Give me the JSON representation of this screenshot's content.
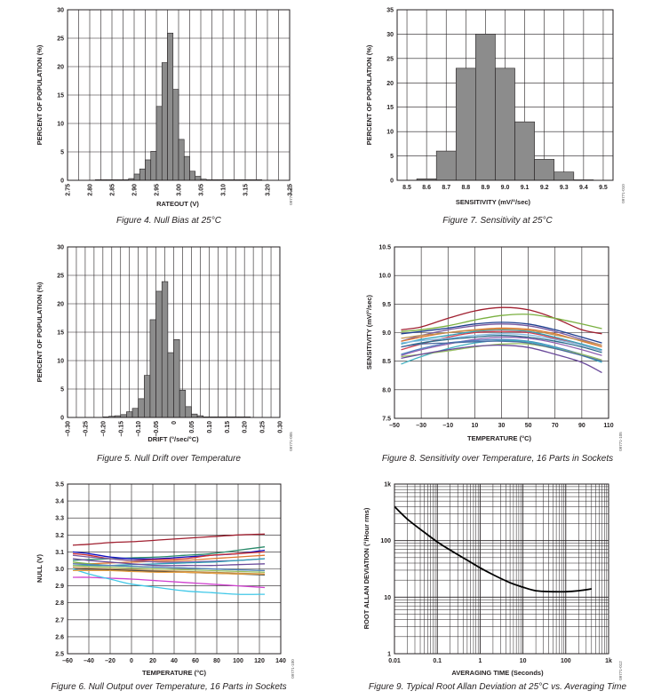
{
  "chart_data": [
    {
      "id": "fig4",
      "type": "bar",
      "caption": "Figure 4. Null Bias at 25°C",
      "xlabel": "RATEOUT (V)",
      "ylabel": "PERCENT OF POPULATION (%)",
      "figure_id": "09771-004",
      "xlim": [
        2.75,
        3.25
      ],
      "ylim": [
        0,
        30
      ],
      "xticks": [
        2.75,
        2.8,
        2.85,
        2.9,
        2.95,
        3.0,
        3.05,
        3.1,
        3.15,
        3.2,
        3.25
      ],
      "xtick_labels": [
        "2.75",
        "2.80",
        "2.85",
        "2.90",
        "2.95",
        "3.00",
        "3.05",
        "3.10",
        "3.15",
        "3.20",
        "3.25"
      ],
      "yticks": [
        0,
        5,
        10,
        15,
        20,
        25,
        30
      ],
      "ytick_labels": [
        "0",
        "5",
        "10",
        "15",
        "20",
        "25",
        "30"
      ],
      "grid": true,
      "bin_width": 0.0125,
      "bin_starts": [
        2.8125,
        2.825,
        2.8375,
        2.85,
        2.8625,
        2.875,
        2.8875,
        2.9,
        2.9125,
        2.925,
        2.9375,
        2.95,
        2.9625,
        2.975,
        2.9875,
        3.0,
        3.0125,
        3.025,
        3.0375,
        3.05,
        3.0625,
        3.075,
        3.0875,
        3.1,
        3.1125,
        3.125,
        3.1375,
        3.15,
        3.1625,
        3.175
      ],
      "values": [
        0.1,
        0.1,
        0.1,
        0.1,
        0.1,
        0.1,
        0.3,
        1.1,
        2.0,
        3.6,
        5.1,
        13.0,
        20.7,
        25.9,
        16.0,
        7.2,
        4.2,
        1.6,
        0.7,
        0.2,
        0.1,
        0.1,
        0.1,
        0.1,
        0.1,
        0.1,
        0.1,
        0.1,
        0.1,
        0.1
      ]
    },
    {
      "id": "fig7",
      "type": "bar",
      "caption": "Figure 7. Sensitivity at 25°C",
      "xlabel": "SENSITIVITY (mV/°/sec)",
      "ylabel": "PERCENT OF POPULATION (%)",
      "figure_id": "09771-010",
      "xlim": [
        8.45,
        9.55
      ],
      "ylim": [
        0,
        35
      ],
      "xticks": [
        8.5,
        8.6,
        8.7,
        8.8,
        8.9,
        9.0,
        9.1,
        9.2,
        9.3,
        9.4,
        9.5
      ],
      "xtick_labels": [
        "8.5",
        "8.6",
        "8.7",
        "8.8",
        "8.9",
        "9.0",
        "9.1",
        "9.2",
        "9.3",
        "9.4",
        "9.5"
      ],
      "yticks": [
        0,
        5,
        10,
        15,
        20,
        25,
        30,
        35
      ],
      "ytick_labels": [
        "0",
        "5",
        "10",
        "15",
        "20",
        "25",
        "30",
        "35"
      ],
      "grid": true,
      "bin_width": 0.1,
      "bin_starts": [
        8.55,
        8.65,
        8.75,
        8.85,
        8.95,
        9.05,
        9.15,
        9.25,
        9.35
      ],
      "values": [
        0.3,
        6.0,
        23.0,
        30.0,
        23.0,
        12.0,
        4.3,
        1.7,
        0.1
      ]
    },
    {
      "id": "fig5",
      "type": "bar",
      "caption": "Figure 5. Null Drift over Temperature",
      "xlabel": "DRIFT (°/sec/°C)",
      "ylabel": "PERCENT OF POPULATION (%)",
      "figure_id": "09771-005",
      "xlim": [
        -0.3,
        0.3
      ],
      "ylim": [
        0,
        30
      ],
      "xticks": [
        -0.3,
        -0.25,
        -0.2,
        -0.15,
        -0.1,
        -0.05,
        0,
        0.05,
        0.1,
        0.15,
        0.2,
        0.25,
        0.3
      ],
      "xtick_labels": [
        "–0.30",
        "–0.25",
        "–0.20",
        "–0.15",
        "–0.10",
        "–0.05",
        "0",
        "0.05",
        "0.10",
        "0.15",
        "0.20",
        "0.25",
        "0.30"
      ],
      "yticks": [
        0,
        5,
        10,
        15,
        20,
        25,
        30
      ],
      "ytick_labels": [
        "0",
        "5",
        "10",
        "15",
        "20",
        "25",
        "30"
      ],
      "grid": true,
      "bin_width": 0.0167,
      "bin_starts": [
        -0.2,
        -0.1833,
        -0.1667,
        -0.15,
        -0.1333,
        -0.1167,
        -0.1,
        -0.0833,
        -0.0667,
        -0.05,
        -0.0333,
        -0.0167,
        0,
        0.0167,
        0.0333,
        0.05,
        0.0667,
        0.0833,
        0.1,
        0.1167,
        0.1333,
        0.15,
        0.1667,
        0.1833,
        0.2
      ],
      "values": [
        0.1,
        0.2,
        0.3,
        0.5,
        1.0,
        1.6,
        3.3,
        7.4,
        17.2,
        22.2,
        23.9,
        11.4,
        13.7,
        4.8,
        1.9,
        0.6,
        0.3,
        0.1,
        0.1,
        0.1,
        0.1,
        0.1,
        0.1,
        0.1,
        0.1
      ]
    },
    {
      "id": "fig8",
      "type": "line",
      "caption": "Figure 8. Sensitivity over Temperature, 16 Parts in Sockets",
      "xlabel": "TEMPERATURE (°C)",
      "ylabel": "SENSITIVITY (mV/°/sec)",
      "figure_id": "09771-105",
      "xlim": [
        -50,
        110
      ],
      "ylim": [
        7.5,
        10.5
      ],
      "xticks": [
        -50,
        -30,
        -10,
        10,
        30,
        50,
        70,
        90,
        110
      ],
      "xtick_labels": [
        "–50",
        "–30",
        "–10",
        "10",
        "30",
        "50",
        "70",
        "90",
        "110"
      ],
      "yticks": [
        7.5,
        8.0,
        8.5,
        9.0,
        9.5,
        10.0,
        10.5
      ],
      "ytick_labels": [
        "7.5",
        "8.0",
        "8.5",
        "9.0",
        "9.5",
        "10.0",
        "10.5"
      ],
      "grid": true,
      "x": [
        -45,
        -30,
        -10,
        10,
        30,
        50,
        70,
        90,
        105
      ],
      "series": [
        {
          "color": "#a02030",
          "values": [
            9.05,
            9.1,
            9.25,
            9.38,
            9.44,
            9.4,
            9.25,
            9.05,
            8.98
          ]
        },
        {
          "color": "#7ab040",
          "values": [
            9.02,
            9.05,
            9.12,
            9.22,
            9.3,
            9.32,
            9.25,
            9.15,
            9.07
          ]
        },
        {
          "color": "#1f3f8f",
          "values": [
            8.98,
            9.02,
            9.08,
            9.15,
            9.18,
            9.15,
            9.05,
            8.92,
            8.82
          ]
        },
        {
          "color": "#7a5aa0",
          "values": [
            8.85,
            8.95,
            9.05,
            9.12,
            9.15,
            9.12,
            9.02,
            8.88,
            8.78
          ]
        },
        {
          "color": "#e07830",
          "values": [
            8.85,
            8.92,
            9.0,
            9.05,
            9.08,
            9.06,
            8.98,
            8.85,
            8.75
          ]
        },
        {
          "color": "#30a0b8",
          "values": [
            8.8,
            8.88,
            8.95,
            9.02,
            9.05,
            9.02,
            8.92,
            8.8,
            8.7
          ]
        },
        {
          "color": "#d04050",
          "values": [
            8.7,
            8.8,
            8.92,
            9.0,
            9.02,
            9.0,
            8.9,
            8.78,
            8.68
          ]
        },
        {
          "color": "#2a6a8a",
          "values": [
            8.75,
            8.82,
            8.88,
            8.92,
            8.95,
            8.92,
            8.85,
            8.75,
            8.65
          ]
        },
        {
          "color": "#9060b0",
          "values": [
            8.6,
            8.7,
            8.8,
            8.88,
            8.92,
            8.9,
            8.82,
            8.7,
            8.6
          ]
        },
        {
          "color": "#5080c0",
          "values": [
            8.62,
            8.72,
            8.82,
            8.86,
            8.88,
            8.85,
            8.75,
            8.62,
            8.52
          ]
        },
        {
          "color": "#40b0c0",
          "values": [
            8.45,
            8.58,
            8.72,
            8.82,
            8.86,
            8.84,
            8.74,
            8.6,
            8.48
          ]
        },
        {
          "color": "#98c060",
          "values": [
            8.58,
            8.62,
            8.68,
            8.75,
            8.8,
            8.8,
            8.72,
            8.62,
            8.52
          ]
        },
        {
          "color": "#6a4a9a",
          "values": [
            8.55,
            8.62,
            8.7,
            8.76,
            8.78,
            8.74,
            8.62,
            8.48,
            8.3
          ]
        },
        {
          "color": "#4a6aa0",
          "values": [
            8.75,
            8.8,
            8.82,
            8.84,
            8.85,
            8.82,
            8.72,
            8.6,
            8.5
          ]
        },
        {
          "color": "#80b8e0",
          "values": [
            8.82,
            8.86,
            8.9,
            8.95,
            8.98,
            8.96,
            8.88,
            8.78,
            8.68
          ]
        },
        {
          "color": "#c09050",
          "values": [
            8.9,
            8.95,
            9.0,
            9.04,
            9.06,
            9.04,
            8.96,
            8.86,
            8.78
          ]
        }
      ]
    },
    {
      "id": "fig6",
      "type": "line",
      "caption": "Figure 6. Null Output over Temperature, 16 Parts in Sockets",
      "xlabel": "TEMPERATURE (°C)",
      "ylabel": "NULL (V)",
      "figure_id": "09771-100",
      "xlim": [
        -60,
        140
      ],
      "ylim": [
        2.5,
        3.5
      ],
      "xticks": [
        -60,
        -40,
        -20,
        0,
        20,
        40,
        60,
        80,
        100,
        120,
        140
      ],
      "xtick_labels": [
        "–60",
        "–40",
        "–20",
        "0",
        "20",
        "40",
        "60",
        "80",
        "100",
        "120",
        "140"
      ],
      "yticks": [
        2.5,
        2.6,
        2.7,
        2.8,
        2.9,
        3.0,
        3.1,
        3.2,
        3.3,
        3.4,
        3.5
      ],
      "ytick_labels": [
        "2.5",
        "2.6",
        "2.7",
        "2.8",
        "2.9",
        "3.0",
        "3.1",
        "3.2",
        "3.3",
        "3.4",
        "3.5"
      ],
      "grid": true,
      "x": [
        -55,
        -40,
        -20,
        0,
        25,
        50,
        75,
        100,
        125
      ],
      "series": [
        {
          "color": "#a02030",
          "values": [
            3.14,
            3.145,
            3.155,
            3.16,
            3.17,
            3.18,
            3.19,
            3.2,
            3.205
          ]
        },
        {
          "color": "#2a8a6a",
          "values": [
            3.05,
            3.055,
            3.06,
            3.065,
            3.07,
            3.08,
            3.09,
            3.11,
            3.13
          ]
        },
        {
          "color": "#1010c0",
          "values": [
            3.1,
            3.09,
            3.07,
            3.06,
            3.06,
            3.07,
            3.08,
            3.09,
            3.11
          ]
        },
        {
          "color": "#d03030",
          "values": [
            3.09,
            3.08,
            3.06,
            3.05,
            3.055,
            3.06,
            3.08,
            3.09,
            3.1
          ]
        },
        {
          "color": "#e07830",
          "values": [
            3.03,
            3.03,
            3.035,
            3.04,
            3.045,
            3.05,
            3.06,
            3.07,
            3.08
          ]
        },
        {
          "color": "#7a5aa0",
          "values": [
            3.08,
            3.07,
            3.06,
            3.05,
            3.04,
            3.04,
            3.045,
            3.05,
            3.06
          ]
        },
        {
          "color": "#30a0b8",
          "values": [
            3.02,
            3.02,
            3.02,
            3.025,
            3.03,
            3.035,
            3.04,
            3.05,
            3.06
          ]
        },
        {
          "color": "#7ab040",
          "values": [
            3.04,
            3.03,
            3.02,
            3.015,
            3.01,
            3.005,
            3.0,
            2.995,
            2.99
          ]
        },
        {
          "color": "#c09050",
          "values": [
            3.01,
            3.005,
            3.0,
            2.995,
            2.99,
            2.985,
            2.98,
            2.975,
            2.97
          ]
        },
        {
          "color": "#404040",
          "values": [
            3.0,
            2.998,
            2.995,
            2.99,
            2.985,
            2.98,
            2.975,
            2.97,
            2.965
          ]
        },
        {
          "color": "#98c060",
          "values": [
            3.02,
            3.015,
            3.01,
            3.005,
            3.0,
            2.995,
            2.99,
            2.985,
            2.98
          ]
        },
        {
          "color": "#d040d0",
          "values": [
            2.95,
            2.95,
            2.945,
            2.94,
            2.93,
            2.92,
            2.91,
            2.9,
            2.89
          ]
        },
        {
          "color": "#40c8e8",
          "values": [
            3.0,
            2.97,
            2.94,
            2.91,
            2.89,
            2.87,
            2.86,
            2.85,
            2.85
          ]
        },
        {
          "color": "#6a4a9a",
          "values": [
            3.06,
            3.05,
            3.04,
            3.03,
            3.02,
            3.02,
            3.02,
            3.025,
            3.03
          ]
        },
        {
          "color": "#5080c0",
          "values": [
            3.03,
            3.025,
            3.02,
            3.015,
            3.01,
            3.005,
            3.0,
            2.995,
            2.99
          ]
        },
        {
          "color": "#e8a040",
          "values": [
            2.99,
            2.99,
            2.99,
            2.985,
            2.98,
            2.98,
            2.975,
            2.97,
            2.97
          ]
        }
      ]
    },
    {
      "id": "fig9",
      "type": "line",
      "caption": "Figure 9. Typical Root Allan Deviation at 25°C vs. Averaging Time",
      "xlabel": "AVERAGING TIME (Seconds)",
      "ylabel": "ROOT ALLAN DEVIATION (°/Hour rms)",
      "figure_id": "09771-012",
      "x_scale": "log",
      "y_scale": "log",
      "xlim": [
        0.01,
        1000
      ],
      "ylim": [
        1,
        1000
      ],
      "xticks": [
        0.01,
        0.1,
        1,
        10,
        100,
        1000
      ],
      "xtick_labels": [
        "0.01",
        "0.1",
        "1",
        "10",
        "100",
        "1k"
      ],
      "yticks": [
        1,
        10,
        100,
        1000
      ],
      "ytick_labels": [
        "1",
        "10",
        "100",
        "1k"
      ],
      "grid": true,
      "series": [
        {
          "color": "#000000",
          "x": [
            0.01,
            0.02,
            0.05,
            0.1,
            0.2,
            0.5,
            1,
            2,
            5,
            10,
            20,
            50,
            100,
            200,
            400
          ],
          "values": [
            400,
            240,
            140,
            95,
            68,
            45,
            33,
            25,
            18,
            15,
            13,
            12.5,
            12.5,
            13,
            14
          ]
        }
      ]
    }
  ]
}
